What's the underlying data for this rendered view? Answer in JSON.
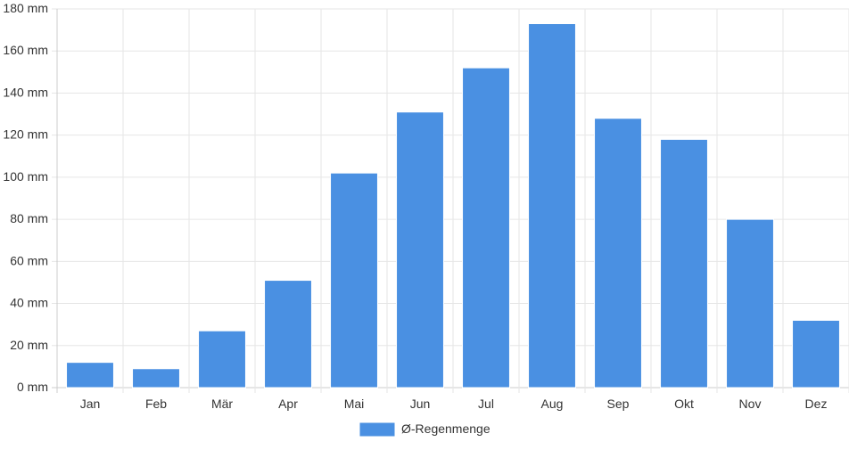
{
  "chart_data": {
    "type": "bar",
    "categories": [
      "Jan",
      "Feb",
      "Mär",
      "Apr",
      "Mai",
      "Jun",
      "Jul",
      "Aug",
      "Sep",
      "Okt",
      "Nov",
      "Dez"
    ],
    "series": [
      {
        "name": "Ø-Regenmenge",
        "values": [
          12,
          9,
          27,
          51,
          102,
          131,
          152,
          173,
          128,
          118,
          80,
          32
        ],
        "color": "#4a90e2"
      }
    ],
    "yticks": [
      "0 mm",
      "20 mm",
      "40 mm",
      "60 mm",
      "80 mm",
      "100 mm",
      "120 mm",
      "140 mm",
      "160 mm",
      "180 mm"
    ],
    "ylim": [
      0,
      180
    ],
    "grid": true,
    "legend_position": "bottom-center"
  }
}
